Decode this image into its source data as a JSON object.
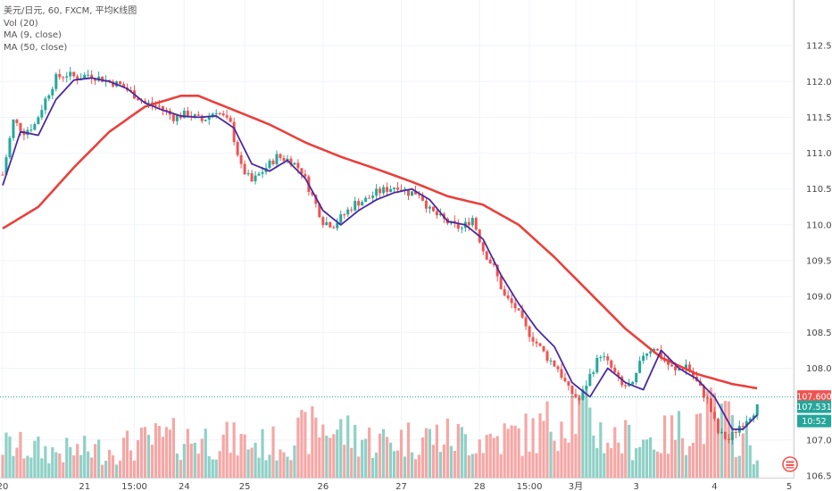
{
  "legend": {
    "title": "美元/日元, 60, FXCM, 平均K线图",
    "vol": "Vol (20)",
    "ma9": "MA (9, close)",
    "ma50": "MA (50, close)"
  },
  "colors": {
    "up": "#26a69a",
    "down": "#ef5350",
    "vol_up": "#8fd0c6",
    "vol_down": "#f5a7a5",
    "ma9": "#4a2aa0",
    "ma50": "#e9413c",
    "price_tag": "#ef5350",
    "last_tag": "#26a69a",
    "timer_tag": "#26a69a"
  },
  "tags": {
    "price_line": "107.600",
    "last": "107.531",
    "timer": "10:52"
  },
  "icons": {
    "logo": "tradingview-flag-icon"
  },
  "chart_data": {
    "type": "candlestick",
    "ylim": [
      106.35,
      112.95
    ],
    "y_ticks": [
      "112.500",
      "112.000",
      "111.500",
      "111.000",
      "110.500",
      "110.000",
      "109.500",
      "109.000",
      "108.500",
      "108.000",
      "107.000",
      "106.500"
    ],
    "y_tick_values": [
      112.5,
      112.0,
      111.5,
      111.0,
      110.5,
      110.0,
      109.5,
      109.0,
      108.5,
      108.0,
      107.0,
      106.5
    ],
    "x_ticks": [
      "20",
      "21",
      "15:00",
      "24",
      "25",
      "26",
      "27",
      "28",
      "15:00",
      "3月",
      "3",
      "4",
      "5"
    ],
    "x_tick_bars": [
      0,
      23,
      37,
      51,
      68,
      90,
      112,
      134,
      148,
      161,
      178,
      200,
      222
    ],
    "price_line": 107.6,
    "ma9_anchors": [
      [
        0,
        110.55
      ],
      [
        5,
        111.3
      ],
      [
        10,
        111.25
      ],
      [
        15,
        111.75
      ],
      [
        20,
        112.02
      ],
      [
        25,
        112.05
      ],
      [
        30,
        112.0
      ],
      [
        35,
        111.9
      ],
      [
        40,
        111.7
      ],
      [
        45,
        111.6
      ],
      [
        50,
        111.52
      ],
      [
        55,
        111.5
      ],
      [
        60,
        111.52
      ],
      [
        65,
        111.35
      ],
      [
        70,
        110.85
      ],
      [
        75,
        110.75
      ],
      [
        80,
        110.9
      ],
      [
        85,
        110.65
      ],
      [
        90,
        110.2
      ],
      [
        95,
        110.0
      ],
      [
        100,
        110.2
      ],
      [
        105,
        110.35
      ],
      [
        110,
        110.45
      ],
      [
        115,
        110.5
      ],
      [
        120,
        110.35
      ],
      [
        125,
        110.05
      ],
      [
        130,
        110.0
      ],
      [
        135,
        109.8
      ],
      [
        140,
        109.3
      ],
      [
        145,
        108.9
      ],
      [
        150,
        108.55
      ],
      [
        155,
        108.3
      ],
      [
        160,
        107.8
      ],
      [
        165,
        107.6
      ],
      [
        170,
        108.0
      ],
      [
        175,
        107.8
      ],
      [
        180,
        107.7
      ],
      [
        185,
        108.25
      ],
      [
        190,
        108.0
      ],
      [
        195,
        107.85
      ],
      [
        200,
        107.6
      ],
      [
        205,
        107.15
      ],
      [
        208,
        107.15
      ],
      [
        212,
        107.35
      ]
    ],
    "ma50_anchors": [
      [
        0,
        109.95
      ],
      [
        10,
        110.25
      ],
      [
        20,
        110.8
      ],
      [
        30,
        111.3
      ],
      [
        40,
        111.65
      ],
      [
        50,
        111.8
      ],
      [
        55,
        111.8
      ],
      [
        65,
        111.6
      ],
      [
        75,
        111.4
      ],
      [
        85,
        111.15
      ],
      [
        95,
        110.95
      ],
      [
        105,
        110.78
      ],
      [
        115,
        110.6
      ],
      [
        125,
        110.4
      ],
      [
        135,
        110.28
      ],
      [
        145,
        110.0
      ],
      [
        155,
        109.55
      ],
      [
        165,
        109.05
      ],
      [
        175,
        108.55
      ],
      [
        185,
        108.15
      ],
      [
        195,
        107.92
      ],
      [
        205,
        107.78
      ],
      [
        212,
        107.72
      ]
    ],
    "close_anchors": [
      [
        0,
        110.7
      ],
      [
        3,
        111.45
      ],
      [
        6,
        111.3
      ],
      [
        9,
        111.4
      ],
      [
        12,
        111.75
      ],
      [
        15,
        112.05
      ],
      [
        18,
        112.1
      ],
      [
        21,
        112.05
      ],
      [
        24,
        112.1
      ],
      [
        27,
        112.05
      ],
      [
        30,
        112.0
      ],
      [
        33,
        111.95
      ],
      [
        36,
        111.85
      ],
      [
        40,
        111.7
      ],
      [
        44,
        111.65
      ],
      [
        48,
        111.5
      ],
      [
        52,
        111.55
      ],
      [
        56,
        111.45
      ],
      [
        60,
        111.6
      ],
      [
        64,
        111.4
      ],
      [
        67,
        110.8
      ],
      [
        70,
        110.6
      ],
      [
        73,
        110.75
      ],
      [
        77,
        110.95
      ],
      [
        81,
        110.9
      ],
      [
        84,
        110.75
      ],
      [
        87,
        110.4
      ],
      [
        90,
        110.05
      ],
      [
        93,
        110.0
      ],
      [
        96,
        110.15
      ],
      [
        99,
        110.3
      ],
      [
        102,
        110.35
      ],
      [
        105,
        110.45
      ],
      [
        108,
        110.5
      ],
      [
        111,
        110.55
      ],
      [
        114,
        110.45
      ],
      [
        117,
        110.45
      ],
      [
        120,
        110.2
      ],
      [
        123,
        110.1
      ],
      [
        126,
        110.0
      ],
      [
        129,
        109.95
      ],
      [
        132,
        110.1
      ],
      [
        135,
        109.65
      ],
      [
        138,
        109.4
      ],
      [
        141,
        109.0
      ],
      [
        144,
        108.85
      ],
      [
        147,
        108.55
      ],
      [
        150,
        108.35
      ],
      [
        153,
        108.15
      ],
      [
        156,
        108.0
      ],
      [
        159,
        107.7
      ],
      [
        162,
        107.55
      ],
      [
        165,
        107.9
      ],
      [
        168,
        108.2
      ],
      [
        171,
        108.0
      ],
      [
        174,
        107.75
      ],
      [
        177,
        107.75
      ],
      [
        180,
        108.2
      ],
      [
        183,
        108.3
      ],
      [
        186,
        108.1
      ],
      [
        189,
        107.95
      ],
      [
        192,
        108.05
      ],
      [
        195,
        107.8
      ],
      [
        198,
        107.55
      ],
      [
        201,
        107.1
      ],
      [
        204,
        107.0
      ],
      [
        207,
        107.2
      ],
      [
        210,
        107.35
      ],
      [
        212,
        107.45
      ]
    ],
    "volume_anchors": [
      [
        0,
        0.25
      ],
      [
        15,
        0.2
      ],
      [
        30,
        0.22
      ],
      [
        45,
        0.3
      ],
      [
        60,
        0.3
      ],
      [
        75,
        0.25
      ],
      [
        90,
        0.4
      ],
      [
        105,
        0.28
      ],
      [
        120,
        0.32
      ],
      [
        135,
        0.3
      ],
      [
        150,
        0.35
      ],
      [
        160,
        0.55
      ],
      [
        170,
        0.3
      ],
      [
        185,
        0.3
      ],
      [
        200,
        0.5
      ],
      [
        212,
        0.2
      ]
    ]
  }
}
